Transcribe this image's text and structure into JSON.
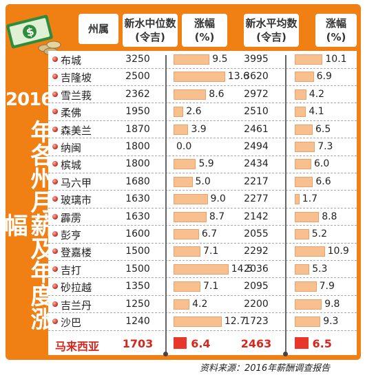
{
  "title": {
    "year": "2016",
    "text": "年各州月薪及年度涨幅"
  },
  "headers": {
    "state": "州属",
    "median_line1": "新水中位数",
    "median_line2": "(令吉)",
    "median_growth_line1": "涨幅",
    "median_growth_line2": "(%)",
    "mean_line1": "新水平均数",
    "mean_line2": "(令吉)",
    "mean_growth_line1": "涨幅",
    "mean_growth_line2": "(%)"
  },
  "source": "资料来源：2016年薪酬调查报告",
  "colors": {
    "frame": "#f07f14",
    "bar": "#f8c08e",
    "total_bar": "#e8372a",
    "total_text": "#d8261c"
  },
  "chart_data": {
    "type": "table",
    "columns": [
      "州属",
      "新水中位数(令吉)",
      "涨幅(%)",
      "新水平均数(令吉)",
      "涨幅(%)"
    ],
    "rows": [
      {
        "state": "布城",
        "median": "3250",
        "median_growth": "9.5",
        "mean": "3995",
        "mean_growth": "10.1"
      },
      {
        "state": "吉隆坡",
        "median": "2500",
        "median_growth": "13.6",
        "mean": "3620",
        "mean_growth": "6.9"
      },
      {
        "state": "雪兰莪",
        "median": "2362",
        "median_growth": "8.6",
        "mean": "2972",
        "mean_growth": "4.2"
      },
      {
        "state": "柔佛",
        "median": "1950",
        "median_growth": "2.6",
        "mean": "2510",
        "mean_growth": "4.1"
      },
      {
        "state": "森美兰",
        "median": "1870",
        "median_growth": "3.9",
        "mean": "2461",
        "mean_growth": "6.5"
      },
      {
        "state": "纳闽",
        "median": "1800",
        "median_growth": "0.0",
        "mean": "2494",
        "mean_growth": "7.3"
      },
      {
        "state": "槟城",
        "median": "1800",
        "median_growth": "5.9",
        "mean": "2434",
        "mean_growth": "6.0"
      },
      {
        "state": "马六甲",
        "median": "1680",
        "median_growth": "5.0",
        "mean": "2217",
        "mean_growth": "6.6"
      },
      {
        "state": "玻璃市",
        "median": "1630",
        "median_growth": "9.0",
        "mean": "2277",
        "mean_growth": "1.7"
      },
      {
        "state": "霹雳",
        "median": "1630",
        "median_growth": "8.7",
        "mean": "2142",
        "mean_growth": "8.8"
      },
      {
        "state": "彭亨",
        "median": "1600",
        "median_growth": "6.7",
        "mean": "2055",
        "mean_growth": "5.2"
      },
      {
        "state": "登嘉楼",
        "median": "1500",
        "median_growth": "7.1",
        "mean": "2292",
        "mean_growth": "10.9"
      },
      {
        "state": "吉打",
        "median": "1500",
        "median_growth": "14.5",
        "mean": "2036",
        "mean_growth": "5.3"
      },
      {
        "state": "砂拉越",
        "median": "1350",
        "median_growth": "7.1",
        "mean": "2095",
        "mean_growth": "7.9"
      },
      {
        "state": "吉兰丹",
        "median": "1250",
        "median_growth": "4.2",
        "mean": "2200",
        "mean_growth": "9.8"
      },
      {
        "state": "沙巴",
        "median": "1240",
        "median_growth": "12.7",
        "mean": "1723",
        "mean_growth": "9.3"
      }
    ],
    "total": {
      "state": "马来西亚",
      "median": "1703",
      "median_growth": "6.4",
      "mean": "2463",
      "mean_growth": "6.5"
    }
  }
}
